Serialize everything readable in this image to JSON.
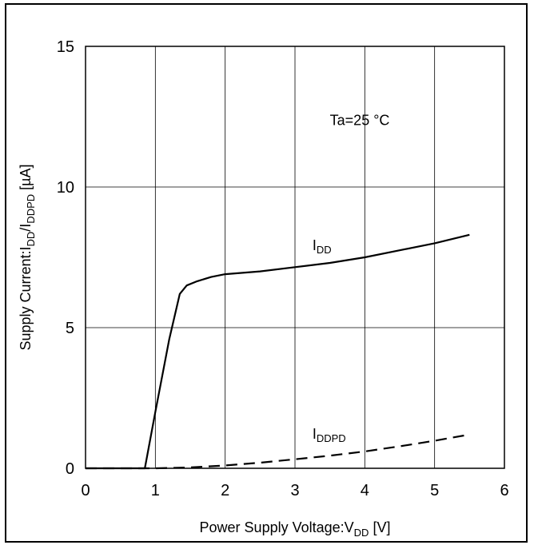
{
  "chart_data": {
    "type": "line",
    "title": "",
    "xlabel": "Power Supply Voltage:V",
    "xlabel_sub": "DD",
    "xlabel_unit": " [V]",
    "ylabel": "Supply Current:I",
    "ylabel_sub1": "DD",
    "ylabel_mid": "/I",
    "ylabel_sub2": "DDPD",
    "ylabel_unit": " [µA]",
    "xlim": [
      0,
      6
    ],
    "ylim": [
      0,
      15
    ],
    "x_ticks": [
      "0",
      "1",
      "2",
      "3",
      "4",
      "5",
      "6"
    ],
    "y_ticks": [
      "0",
      "5",
      "10",
      "15"
    ],
    "grid": true,
    "annotation": "Ta=25 °C",
    "series": [
      {
        "name": "IDD",
        "label_main": "I",
        "label_sub": "DD",
        "style": "solid",
        "x": [
          0,
          0.8,
          0.85,
          1.0,
          1.2,
          1.35,
          1.45,
          1.6,
          1.8,
          2.0,
          2.5,
          3.0,
          3.5,
          4.0,
          4.5,
          5.0,
          5.5
        ],
        "y": [
          0,
          0,
          0,
          2.0,
          4.6,
          6.2,
          6.5,
          6.65,
          6.8,
          6.9,
          7.0,
          7.15,
          7.3,
          7.5,
          7.75,
          8.0,
          8.3
        ]
      },
      {
        "name": "IDDPD",
        "label_main": "I",
        "label_sub": "DDPD",
        "style": "dashed",
        "x": [
          0,
          1.0,
          1.5,
          2.0,
          2.5,
          3.0,
          3.5,
          4.0,
          4.5,
          5.0,
          5.5
        ],
        "y": [
          0,
          0,
          0.03,
          0.1,
          0.2,
          0.32,
          0.45,
          0.6,
          0.78,
          0.98,
          1.2
        ]
      }
    ]
  }
}
